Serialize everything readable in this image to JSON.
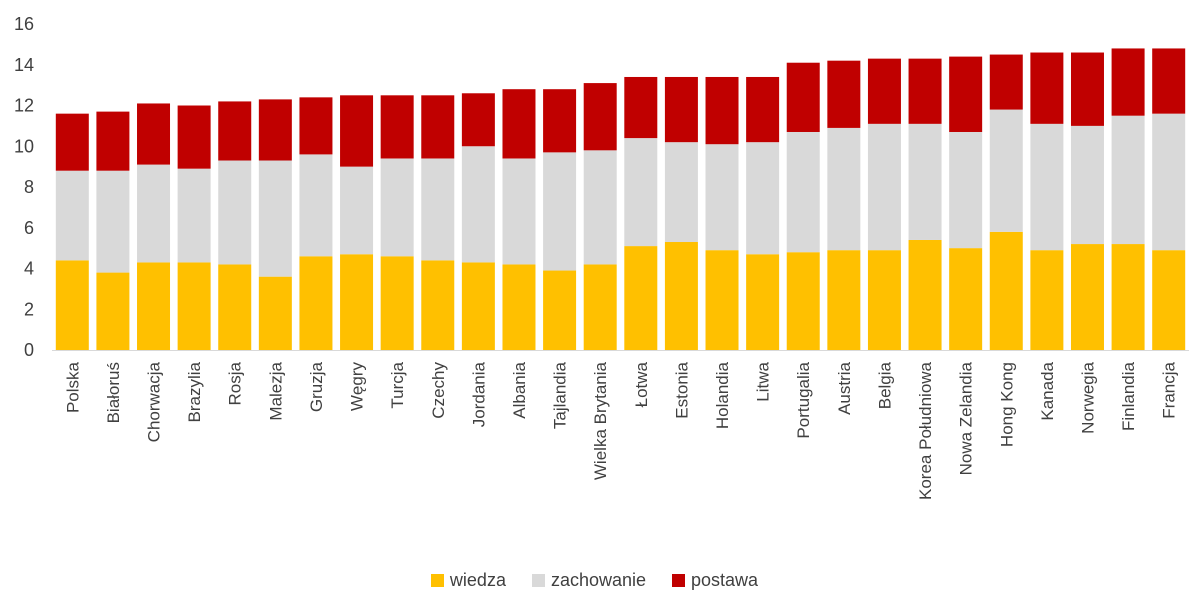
{
  "chart_data": {
    "type": "bar",
    "stacked": true,
    "categories": [
      "Polska",
      "Białoruś",
      "Chorwacja",
      "Brazylia",
      "Rosja",
      "Malezja",
      "Gruzja",
      "Węgry",
      "Turcja",
      "Czechy",
      "Jordania",
      "Albania",
      "Tajlandia",
      "Wielka Brytania",
      "Łotwa",
      "Estonia",
      "Holandia",
      "Litwa",
      "Portugalia",
      "Austria",
      "Belgia",
      "Korea Południowa",
      "Nowa Zelandia",
      "Hong Kong",
      "Kanada",
      "Norwegia",
      "Finlandia",
      "Francja"
    ],
    "series": [
      {
        "name": "wiedza",
        "color": "#FFC000",
        "values": [
          4.4,
          3.8,
          4.3,
          4.3,
          4.2,
          3.6,
          4.6,
          4.7,
          4.6,
          4.4,
          4.3,
          4.2,
          3.9,
          4.2,
          5.1,
          5.3,
          4.9,
          4.7,
          4.8,
          4.9,
          4.9,
          5.4,
          5.0,
          5.8,
          4.9,
          5.2,
          5.2,
          4.9
        ]
      },
      {
        "name": "zachowanie",
        "color": "#D9D9D9",
        "values": [
          4.4,
          5.0,
          4.8,
          4.6,
          5.1,
          5.7,
          5.0,
          4.3,
          4.8,
          5.0,
          5.7,
          5.2,
          5.8,
          5.6,
          5.3,
          4.9,
          5.2,
          5.5,
          5.9,
          6.0,
          6.2,
          5.7,
          5.7,
          6.0,
          6.2,
          5.8,
          6.3,
          6.7
        ]
      },
      {
        "name": "postawa",
        "color": "#C00000",
        "values": [
          2.8,
          2.9,
          3.0,
          3.1,
          2.9,
          3.0,
          2.8,
          3.5,
          3.1,
          3.1,
          2.6,
          3.4,
          3.1,
          3.3,
          3.0,
          3.2,
          3.3,
          3.2,
          3.4,
          3.3,
          3.2,
          3.2,
          3.7,
          2.7,
          3.5,
          3.6,
          3.3,
          3.2
        ]
      }
    ],
    "ylim": [
      0,
      16
    ],
    "yticks": [
      0,
      2,
      4,
      6,
      8,
      10,
      12,
      14,
      16
    ],
    "grid": false,
    "legend_position": "bottom"
  }
}
